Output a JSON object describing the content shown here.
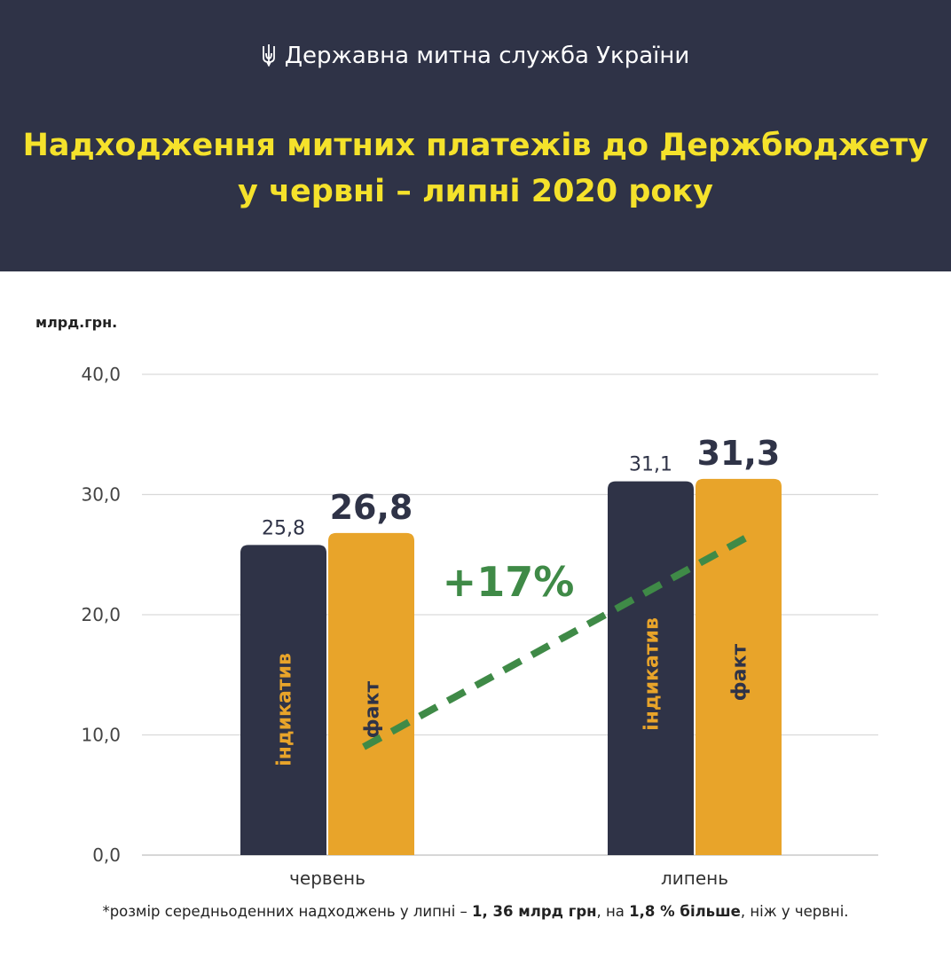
{
  "header": {
    "org": "Державна митна служба України",
    "title_line1": "Надходження митних платежів до Держбюджету",
    "title_line2": "у червні – липні 2020 року"
  },
  "chart_data": {
    "type": "bar",
    "ylabel": "млрд.грн.",
    "ylim": [
      0,
      40
    ],
    "yticks": [
      "0,0",
      "10,0",
      "20,0",
      "30,0",
      "40,0"
    ],
    "categories": [
      "червень",
      "липень"
    ],
    "series": [
      {
        "name": "індикатив",
        "values": [
          25.8,
          31.1
        ],
        "labels": [
          "25,8",
          "31,1"
        ],
        "color": "#2f3347",
        "text_color": "#e8a42a"
      },
      {
        "name": "факт",
        "values": [
          26.8,
          31.3
        ],
        "labels": [
          "26,8",
          "31,3"
        ],
        "color": "#e8a42a",
        "text_color": "#2f3347"
      }
    ],
    "annotation": "+17%",
    "annotation_color": "#3f8a47",
    "grid": true
  },
  "footnote": {
    "prefix": "*розмір середньоденних надходжень у липні – ",
    "amount": "1, 36 млрд грн",
    "middle": ", на ",
    "change": "1,8 % більше",
    "suffix": ", ніж у червні."
  }
}
